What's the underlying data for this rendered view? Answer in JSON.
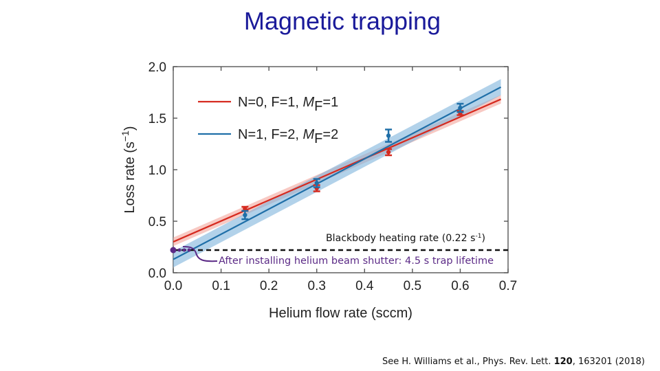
{
  "slide": {
    "title": "Magnetic trapping",
    "citation": {
      "prefix": "See H. Williams et al., Phys. Rev. Lett. ",
      "volume": "120",
      "suffix": ", 163201 (2018)"
    }
  },
  "colors": {
    "title": "#1a1a9a",
    "series_red": "#d62a1f",
    "series_blue": "#1f6fa8",
    "band_red": "#f4a59b",
    "band_blue": "#7fb4dc",
    "annotation": "#5b2a86"
  },
  "chart_data": {
    "type": "scatter",
    "xlabel": "Helium flow rate (sccm)",
    "ylabel_text": "Loss rate (s",
    "ylabel_exp": "−1",
    "xlim": [
      0.0,
      0.7
    ],
    "ylim": [
      0.0,
      2.0
    ],
    "xticks": [
      "0.0",
      "0.1",
      "0.2",
      "0.3",
      "0.4",
      "0.5",
      "0.6",
      "0.7"
    ],
    "yticks": [
      "0.0",
      "0.5",
      "1.0",
      "1.5",
      "2.0"
    ],
    "legend_position": "top-left",
    "series": [
      {
        "name": "N=0, F=1, MF=1",
        "label_prefix": "N=0, F=1, ",
        "label_sym": "M",
        "label_sub": "F",
        "label_suffix": "=1",
        "color": "#d62a1f",
        "band_color": "#f4a59b",
        "x": [
          0.15,
          0.3,
          0.45,
          0.6
        ],
        "y": [
          0.62,
          0.82,
          1.17,
          1.55
        ],
        "err": [
          0.02,
          0.03,
          0.03,
          0.02
        ],
        "fit": {
          "intercept": 0.3,
          "slope": 2.02,
          "band": 0.035
        }
      },
      {
        "name": "N=1, F=2, MF=2",
        "label_prefix": "N=1, F=2, ",
        "label_sym": "M",
        "label_sub": "F",
        "label_suffix": "=2",
        "color": "#1f6fa8",
        "band_color": "#7fb4dc",
        "x": [
          0.15,
          0.3,
          0.45,
          0.6
        ],
        "y": [
          0.56,
          0.87,
          1.33,
          1.6
        ],
        "err": [
          0.04,
          0.04,
          0.06,
          0.04
        ],
        "fit": {
          "intercept": 0.13,
          "slope": 2.44,
          "band": 0.065
        }
      }
    ],
    "reference_line": {
      "y": 0.22,
      "label_text": "Blackbody heating rate (0.22 s",
      "label_exp": "-1",
      "label_end": ")"
    },
    "annotation": {
      "text": "After installing helium beam shutter: 4.5 s trap lifetime",
      "point": {
        "x": 0.0,
        "y": 0.22
      }
    }
  }
}
